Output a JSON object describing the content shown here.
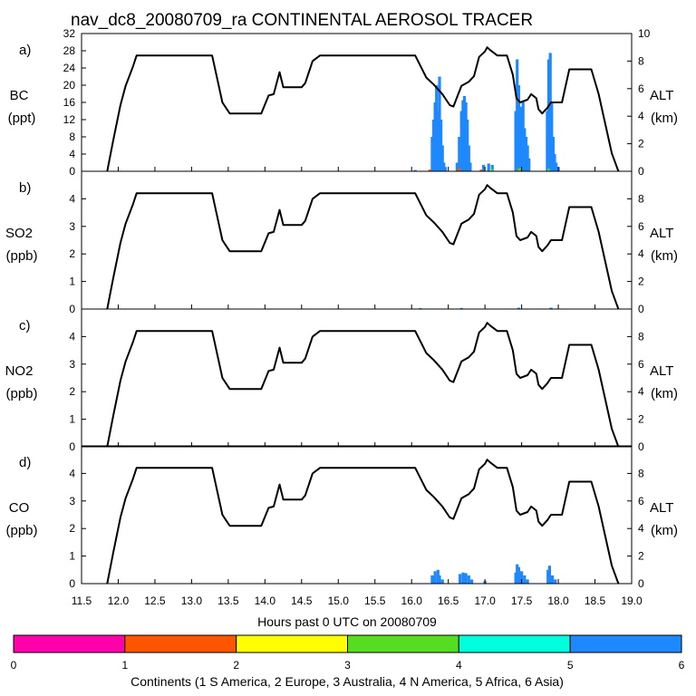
{
  "chart_data": {
    "type": "multi-panel-bar-with-line",
    "title": "nav_dc8_20080709_ra CONTINENTAL AEROSOL TRACER",
    "xlabel": "Hours past 0 UTC on 20080709",
    "xlim": [
      11.5,
      19.0
    ],
    "xticks": [
      "11.5",
      "12.0",
      "12.5",
      "13.0",
      "13.5",
      "14.0",
      "14.5",
      "15.0",
      "15.5",
      "16.0",
      "16.5",
      "17.0",
      "17.5",
      "18.0",
      "18.5",
      "19.0"
    ],
    "right_axis": {
      "label": "ALT",
      "unit": "(km)",
      "ylim": [
        0,
        10
      ],
      "ticks": [
        "0",
        "2",
        "4",
        "6",
        "8",
        "10"
      ]
    },
    "altitude_km": [
      [
        11.85,
        0
      ],
      [
        11.93,
        2.2
      ],
      [
        12.03,
        4.8
      ],
      [
        12.1,
        6.2
      ],
      [
        12.2,
        7.6
      ],
      [
        12.25,
        8.4
      ],
      [
        13.28,
        8.4
      ],
      [
        13.42,
        5.0
      ],
      [
        13.47,
        4.6
      ],
      [
        13.52,
        4.2
      ],
      [
        13.95,
        4.2
      ],
      [
        14.05,
        5.5
      ],
      [
        14.12,
        5.6
      ],
      [
        14.2,
        7.2
      ],
      [
        14.25,
        6.1
      ],
      [
        14.5,
        6.1
      ],
      [
        14.55,
        6.4
      ],
      [
        14.65,
        8.0
      ],
      [
        14.75,
        8.4
      ],
      [
        16.05,
        8.4
      ],
      [
        16.2,
        6.8
      ],
      [
        16.3,
        6.3
      ],
      [
        16.42,
        5.6
      ],
      [
        16.52,
        4.8
      ],
      [
        16.57,
        4.7
      ],
      [
        16.68,
        6.2
      ],
      [
        16.78,
        6.5
      ],
      [
        16.85,
        6.9
      ],
      [
        16.92,
        8.3
      ],
      [
        17.0,
        8.7
      ],
      [
        17.03,
        9.0
      ],
      [
        17.07,
        8.8
      ],
      [
        17.17,
        8.4
      ],
      [
        17.3,
        8.4
      ],
      [
        17.38,
        7.0
      ],
      [
        17.43,
        5.3
      ],
      [
        17.48,
        5.0
      ],
      [
        17.58,
        5.2
      ],
      [
        17.63,
        5.6
      ],
      [
        17.7,
        5.3
      ],
      [
        17.73,
        4.5
      ],
      [
        17.78,
        4.2
      ],
      [
        17.85,
        4.6
      ],
      [
        17.9,
        5.0
      ],
      [
        18.05,
        5.0
      ],
      [
        18.15,
        7.4
      ],
      [
        18.45,
        7.4
      ],
      [
        18.55,
        5.6
      ],
      [
        18.65,
        3.2
      ],
      [
        18.73,
        1.3
      ],
      [
        18.82,
        0
      ]
    ],
    "panels": [
      {
        "letter": "a)",
        "species": "BC",
        "unit": "(ppt)",
        "ylim": [
          0,
          32
        ],
        "yticks": [
          "0",
          "4",
          "8",
          "12",
          "16",
          "20",
          "24",
          "28",
          "32"
        ],
        "series": [
          {
            "name": "Asia",
            "color": "#1e88ff",
            "points": [
              [
                16.05,
                0.3
              ],
              [
                16.28,
                8
              ],
              [
                16.3,
                12
              ],
              [
                16.32,
                16
              ],
              [
                16.34,
                20
              ],
              [
                16.36,
                14
              ],
              [
                16.38,
                22
              ],
              [
                16.4,
                12
              ],
              [
                16.42,
                6
              ],
              [
                16.44,
                2
              ],
              [
                16.46,
                1
              ],
              [
                16.62,
                2
              ],
              [
                16.65,
                8
              ],
              [
                16.68,
                14
              ],
              [
                16.7,
                16.5
              ],
              [
                16.72,
                17.5
              ],
              [
                16.74,
                16
              ],
              [
                16.76,
                12
              ],
              [
                16.78,
                6
              ],
              [
                16.8,
                2
              ],
              [
                16.98,
                1.5
              ],
              [
                17.05,
                1.8
              ],
              [
                17.1,
                1.5
              ],
              [
                17.42,
                14
              ],
              [
                17.44,
                26
              ],
              [
                17.46,
                20
              ],
              [
                17.48,
                12
              ],
              [
                17.5,
                15
              ],
              [
                17.52,
                16
              ],
              [
                17.54,
                10
              ],
              [
                17.56,
                8
              ],
              [
                17.58,
                6
              ],
              [
                17.6,
                3
              ],
              [
                17.85,
                14
              ],
              [
                17.87,
                26
              ],
              [
                17.89,
                27.5
              ],
              [
                17.91,
                16
              ],
              [
                17.93,
                8
              ],
              [
                17.95,
                4
              ],
              [
                17.97,
                2
              ],
              [
                18.0,
                1
              ]
            ]
          },
          {
            "name": "Europe",
            "color": "#ff5500",
            "points": [
              [
                16.25,
                0.4
              ],
              [
                16.65,
                0.8
              ],
              [
                16.95,
                0.4
              ],
              [
                17.45,
                0.6
              ]
            ]
          },
          {
            "name": "N America",
            "color": "#55dd22",
            "points": [
              [
                17.1,
                0.5
              ],
              [
                17.47,
                0.7
              ],
              [
                17.87,
                0.6
              ]
            ]
          }
        ]
      },
      {
        "letter": "b)",
        "species": "SO2",
        "unit": "(ppb)",
        "ylim": [
          0,
          5
        ],
        "yticks": [
          "0",
          "1",
          "2",
          "3",
          "4"
        ],
        "series": [
          {
            "name": "Asia",
            "color": "#1e88ff",
            "points": [
              [
                16.12,
                0.03
              ],
              [
                16.68,
                0.04
              ],
              [
                17.46,
                0.05
              ],
              [
                17.9,
                0.05
              ]
            ]
          }
        ]
      },
      {
        "letter": "c)",
        "species": "NO2",
        "unit": "(ppb)",
        "ylim": [
          0,
          5
        ],
        "yticks": [
          "0",
          "1",
          "2",
          "3",
          "4"
        ],
        "series": [
          {
            "name": "Asia",
            "color": "#1e88ff",
            "points": [
              [
                16.35,
                0.02
              ],
              [
                17.9,
                0.04
              ]
            ]
          }
        ]
      },
      {
        "letter": "d)",
        "species": "CO",
        "unit": "(ppb)",
        "ylim": [
          0,
          5
        ],
        "yticks": [
          "0",
          "1",
          "2",
          "3",
          "4"
        ],
        "series": [
          {
            "name": "Asia",
            "color": "#1e88ff",
            "points": [
              [
                16.28,
                0.3
              ],
              [
                16.32,
                0.45
              ],
              [
                16.36,
                0.5
              ],
              [
                16.38,
                0.3
              ],
              [
                16.42,
                0.15
              ],
              [
                16.66,
                0.35
              ],
              [
                16.7,
                0.4
              ],
              [
                16.74,
                0.38
              ],
              [
                16.78,
                0.3
              ],
              [
                16.82,
                0.15
              ],
              [
                17.0,
                0.1
              ],
              [
                17.42,
                0.4
              ],
              [
                17.44,
                0.7
              ],
              [
                17.46,
                0.6
              ],
              [
                17.5,
                0.45
              ],
              [
                17.54,
                0.3
              ],
              [
                17.58,
                0.15
              ],
              [
                17.86,
                0.5
              ],
              [
                17.88,
                0.65
              ],
              [
                17.92,
                0.3
              ],
              [
                17.96,
                0.15
              ]
            ]
          }
        ]
      }
    ],
    "colorbar": {
      "label": "Continents (1 S America, 2 Europe, 3 Australia, 4 N America, 5 Africa, 6 Asia)",
      "ticks": [
        "0",
        "1",
        "2",
        "3",
        "4",
        "5",
        "6"
      ],
      "colors": [
        "#ff00aa",
        "#ff5500",
        "#ffff00",
        "#55dd22",
        "#00ffdd",
        "#1e88ff"
      ]
    }
  }
}
